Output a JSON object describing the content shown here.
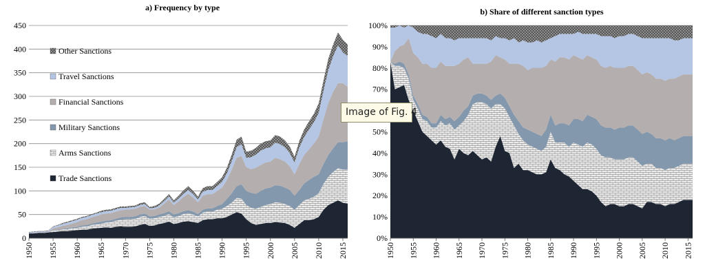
{
  "tooltip": "Image of Fig. 4",
  "colors": {
    "trade": "#1e2633",
    "arms": "#e6e6e6",
    "military": "#8498ad",
    "financial": "#b4aeae",
    "travel": "#b4c6e4",
    "other": "#4a4a4a"
  },
  "chart_data": [
    {
      "type": "area",
      "title": "a) Frequency by type",
      "stacked": true,
      "xlabel": "",
      "ylabel": "",
      "xlim": [
        1950,
        2016
      ],
      "ylim": [
        0,
        450
      ],
      "x_ticks": [
        1950,
        1955,
        1960,
        1965,
        1970,
        1975,
        1980,
        1985,
        1990,
        1995,
        2000,
        2005,
        2010,
        2015
      ],
      "y_ticks": [
        0,
        50,
        100,
        150,
        200,
        250,
        300,
        350,
        400,
        450
      ],
      "grid": "horizontal",
      "legend": "left, top to bottom",
      "legend_order": [
        "Other Sanctions",
        "Travel Sanctions",
        "Financial Sanctions",
        "Military Sanctions",
        "Arms Sanctions",
        "Trade Sanctions"
      ],
      "x": [
        1950,
        1951,
        1952,
        1953,
        1954,
        1955,
        1956,
        1957,
        1958,
        1959,
        1960,
        1961,
        1962,
        1963,
        1964,
        1965,
        1966,
        1967,
        1968,
        1969,
        1970,
        1971,
        1972,
        1973,
        1974,
        1975,
        1976,
        1977,
        1978,
        1979,
        1980,
        1981,
        1982,
        1983,
        1984,
        1985,
        1986,
        1987,
        1988,
        1989,
        1990,
        1991,
        1992,
        1993,
        1994,
        1995,
        1996,
        1997,
        1998,
        1999,
        2000,
        2001,
        2002,
        2003,
        2004,
        2005,
        2006,
        2007,
        2008,
        2009,
        2010,
        2011,
        2012,
        2013,
        2014,
        2015,
        2016
      ],
      "series": [
        {
          "name": "Trade Sanctions",
          "color_key": "trade",
          "values": [
            10,
            10,
            11,
            11,
            12,
            13,
            14,
            15,
            15,
            16,
            17,
            18,
            18,
            20,
            21,
            22,
            23,
            22,
            24,
            25,
            24,
            24,
            25,
            28,
            30,
            26,
            27,
            30,
            32,
            35,
            30,
            32,
            35,
            36,
            34,
            32,
            38,
            40,
            40,
            42,
            42,
            45,
            50,
            55,
            52,
            40,
            32,
            28,
            30,
            32,
            32,
            34,
            33,
            32,
            28,
            22,
            30,
            38,
            38,
            40,
            45,
            60,
            70,
            75,
            80,
            75,
            73
          ]
        },
        {
          "name": "Arms Sanctions",
          "color_key": "arms",
          "values": [
            0,
            0,
            0,
            0,
            0,
            3,
            3,
            4,
            4,
            5,
            5,
            6,
            7,
            8,
            8,
            9,
            10,
            12,
            13,
            14,
            16,
            16,
            16,
            17,
            17,
            15,
            15,
            15,
            15,
            16,
            14,
            15,
            16,
            17,
            16,
            14,
            16,
            17,
            16,
            18,
            20,
            23,
            25,
            30,
            32,
            30,
            32,
            34,
            36,
            38,
            40,
            42,
            42,
            40,
            40,
            38,
            40,
            42,
            45,
            48,
            50,
            55,
            60,
            65,
            68,
            70,
            72
          ]
        },
        {
          "name": "Military Sanctions",
          "color_key": "military",
          "values": [
            0,
            0,
            0,
            0,
            0,
            1,
            1,
            1,
            2,
            2,
            2,
            3,
            3,
            3,
            4,
            4,
            4,
            4,
            4,
            5,
            5,
            5,
            5,
            5,
            5,
            5,
            5,
            5,
            6,
            6,
            6,
            6,
            6,
            6,
            6,
            5,
            6,
            6,
            7,
            8,
            10,
            15,
            20,
            25,
            30,
            30,
            32,
            32,
            34,
            35,
            35,
            36,
            36,
            35,
            34,
            30,
            32,
            36,
            40,
            42,
            40,
            42,
            46,
            50,
            55,
            58,
            60
          ]
        },
        {
          "name": "Financial Sanctions",
          "color_key": "financial",
          "values": [
            0,
            1,
            1,
            1,
            1,
            4,
            5,
            6,
            7,
            8,
            10,
            11,
            12,
            13,
            14,
            15,
            15,
            15,
            15,
            15,
            15,
            16,
            16,
            16,
            16,
            14,
            14,
            15,
            20,
            25,
            20,
            25,
            30,
            35,
            30,
            25,
            30,
            30,
            30,
            32,
            35,
            40,
            50,
            60,
            60,
            50,
            50,
            55,
            55,
            55,
            55,
            58,
            56,
            55,
            50,
            45,
            55,
            60,
            65,
            70,
            80,
            95,
            110,
            120,
            125,
            125,
            115
          ]
        },
        {
          "name": "Travel Sanctions",
          "color_key": "travel",
          "values": [
            2,
            2,
            2,
            2,
            2,
            3,
            4,
            4,
            5,
            5,
            5,
            5,
            5,
            5,
            5,
            5,
            5,
            5,
            5,
            5,
            4,
            4,
            4,
            4,
            4,
            3,
            3,
            4,
            5,
            6,
            5,
            6,
            7,
            8,
            7,
            6,
            8,
            9,
            9,
            10,
            12,
            14,
            18,
            22,
            25,
            20,
            25,
            28,
            30,
            30,
            30,
            32,
            32,
            30,
            28,
            25,
            35,
            38,
            42,
            45,
            50,
            60,
            70,
            75,
            80,
            65,
            65
          ]
        },
        {
          "name": "Other Sanctions",
          "color_key": "other",
          "values": [
            1,
            1,
            1,
            1,
            1,
            1,
            1,
            2,
            2,
            2,
            2,
            2,
            2,
            2,
            2,
            3,
            3,
            3,
            3,
            3,
            3,
            3,
            3,
            4,
            4,
            3,
            4,
            4,
            5,
            5,
            5,
            6,
            7,
            8,
            7,
            6,
            8,
            8,
            8,
            9,
            10,
            12,
            14,
            16,
            16,
            13,
            14,
            14,
            15,
            15,
            15,
            16,
            16,
            15,
            14,
            12,
            14,
            16,
            17,
            18,
            20,
            22,
            24,
            25,
            27,
            27,
            25
          ]
        }
      ]
    },
    {
      "type": "area",
      "title": "b) Share of different sanction types",
      "stacked": true,
      "percent": true,
      "xlabel": "",
      "ylabel": "",
      "xlim": [
        1950,
        2016
      ],
      "ylim": [
        0,
        100
      ],
      "x_ticks": [
        1950,
        1955,
        1960,
        1965,
        1970,
        1975,
        1980,
        1985,
        1990,
        1995,
        2000,
        2005,
        2010,
        2015
      ],
      "y_ticks": [
        "0%",
        "10%",
        "20%",
        "30%",
        "40%",
        "50%",
        "60%",
        "70%",
        "80%",
        "90%",
        "100%"
      ],
      "grid": "horizontal",
      "x": [
        1950,
        1951,
        1952,
        1953,
        1954,
        1955,
        1956,
        1957,
        1958,
        1959,
        1960,
        1961,
        1962,
        1963,
        1964,
        1965,
        1966,
        1967,
        1968,
        1969,
        1970,
        1971,
        1972,
        1973,
        1974,
        1975,
        1976,
        1977,
        1978,
        1979,
        1980,
        1981,
        1982,
        1983,
        1984,
        1985,
        1986,
        1987,
        1988,
        1989,
        1990,
        1991,
        1992,
        1993,
        1994,
        1995,
        1996,
        1997,
        1998,
        1999,
        2000,
        2001,
        2002,
        2003,
        2004,
        2005,
        2006,
        2007,
        2008,
        2009,
        2010,
        2011,
        2012,
        2013,
        2014,
        2015,
        2016
      ],
      "series": [
        {
          "name": "Trade Sanctions",
          "color_key": "trade",
          "values": [
            83,
            70,
            71,
            72,
            65,
            60,
            55,
            50,
            48,
            46,
            44,
            46,
            43,
            42,
            37,
            42,
            40,
            39,
            41,
            39,
            37,
            38,
            36,
            43,
            48,
            41,
            40,
            33,
            35,
            32,
            32,
            31,
            30,
            30,
            31,
            37,
            33,
            32,
            30,
            29,
            27,
            25,
            23,
            23,
            22,
            20,
            17,
            15,
            16,
            16,
            15,
            15,
            16,
            16,
            15,
            14,
            17,
            17,
            16,
            16,
            15,
            16,
            16,
            17,
            18,
            18,
            18
          ]
        },
        {
          "name": "Arms Sanctions",
          "color_key": "arms",
          "values": [
            0,
            11,
            10,
            8,
            10,
            5,
            6,
            6,
            7,
            6,
            8,
            9,
            10,
            12,
            14,
            11,
            15,
            19,
            22,
            25,
            27,
            25,
            25,
            20,
            15,
            20,
            17,
            20,
            14,
            14,
            12,
            12,
            12,
            11,
            12,
            13,
            12,
            13,
            15,
            14,
            18,
            19,
            20,
            22,
            22,
            22,
            22,
            23,
            22,
            21,
            22,
            22,
            22,
            22,
            21,
            20,
            18,
            18,
            17,
            17,
            17,
            17,
            17,
            17,
            17,
            17,
            17
          ]
        },
        {
          "name": "Military Sanctions",
          "color_key": "military",
          "values": [
            0,
            1,
            2,
            2,
            2,
            2,
            2,
            2,
            2,
            2,
            2,
            3,
            3,
            3,
            4,
            4,
            5,
            4,
            4,
            4,
            4,
            4,
            4,
            4,
            5,
            5,
            5,
            5,
            6,
            6,
            7,
            7,
            7,
            7,
            8,
            8,
            8,
            9,
            9,
            10,
            11,
            12,
            12,
            13,
            13,
            14,
            14,
            14,
            14,
            14,
            15,
            15,
            15,
            15,
            15,
            15,
            15,
            14,
            14,
            14,
            14,
            14,
            13,
            13,
            13,
            13,
            13
          ]
        },
        {
          "name": "Financial Sanctions",
          "color_key": "financial",
          "values": [
            0,
            6,
            7,
            9,
            17,
            20,
            22,
            24,
            25,
            26,
            26,
            25,
            25,
            24,
            26,
            25,
            24,
            23,
            15,
            14,
            14,
            15,
            18,
            19,
            17,
            18,
            20,
            24,
            27,
            29,
            28,
            30,
            31,
            32,
            30,
            26,
            30,
            31,
            31,
            31,
            30,
            29,
            29,
            28,
            28,
            28,
            28,
            28,
            29,
            29,
            28,
            28,
            28,
            28,
            28,
            28,
            28,
            28,
            28,
            28,
            28,
            28,
            29,
            29,
            29,
            29,
            29
          ]
        },
        {
          "name": "Travel Sanctions",
          "color_key": "travel",
          "values": [
            16,
            11,
            10,
            8,
            6,
            12,
            12,
            14,
            14,
            15,
            14,
            13,
            13,
            13,
            12,
            12,
            10,
            9,
            12,
            12,
            12,
            12,
            10,
            9,
            9,
            10,
            11,
            12,
            10,
            12,
            13,
            12,
            13,
            12,
            12,
            10,
            12,
            11,
            11,
            12,
            10,
            12,
            12,
            10,
            11,
            12,
            14,
            15,
            14,
            14,
            15,
            15,
            15,
            15,
            16,
            17,
            16,
            17,
            19,
            19,
            20,
            19,
            18,
            17,
            17,
            17,
            17
          ]
        },
        {
          "name": "Other Sanctions",
          "color_key": "other",
          "values": [
            1,
            1,
            0,
            1,
            0,
            1,
            3,
            4,
            4,
            5,
            6,
            4,
            6,
            6,
            7,
            6,
            6,
            6,
            6,
            6,
            6,
            6,
            7,
            5,
            6,
            6,
            7,
            6,
            8,
            7,
            8,
            8,
            7,
            8,
            7,
            6,
            5,
            4,
            4,
            4,
            4,
            3,
            4,
            4,
            4,
            4,
            5,
            5,
            5,
            6,
            5,
            5,
            4,
            4,
            5,
            6,
            6,
            6,
            6,
            6,
            6,
            6,
            7,
            7,
            6,
            6,
            6
          ]
        }
      ]
    }
  ]
}
